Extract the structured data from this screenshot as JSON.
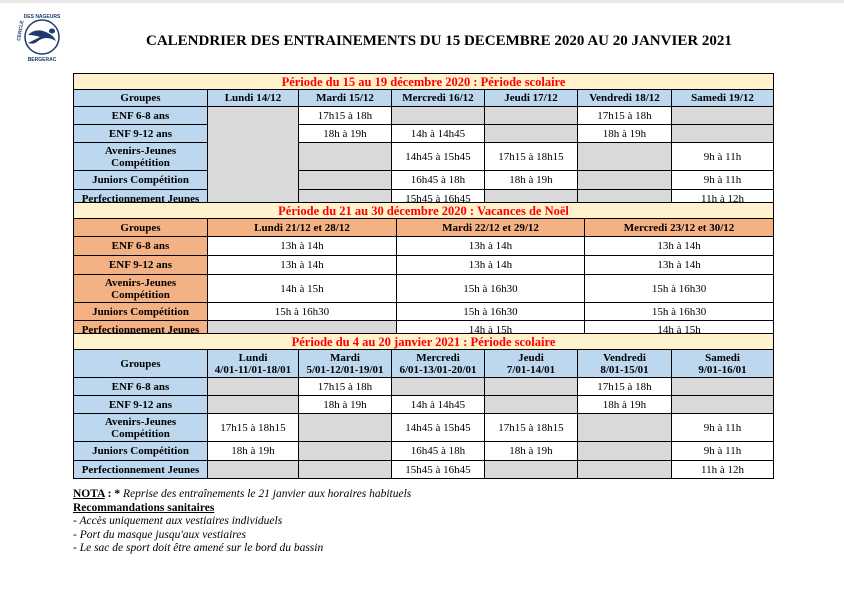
{
  "logo": {
    "text_top": "DES NAGEURS",
    "text_left": "CERCLE",
    "text_bottom": "BERGERAC",
    "color": "#1f3a6b"
  },
  "title": "CALENDRIER DES ENTRAINEMENTS DU 15 DECEMBRE 2020 AU 20 JANVIER 2021",
  "colors": {
    "period_bg": "#fff2cc",
    "period_text": "#ff0000",
    "blue_header": "#bdd7ee",
    "orange_header": "#f4b183",
    "empty_cell": "#d9d9d9"
  },
  "sections": [
    {
      "period": "Période du 15 au 19 décembre 2020 : Période scolaire",
      "theme": "blue",
      "merged_first_day_column": true,
      "headers": [
        "Groupes",
        "Lundi 14/12",
        "Mardi 15/12",
        "Mercredi 16/12",
        "Jeudi 17/12",
        "Vendredi 18/12",
        "Samedi 19/12"
      ],
      "rows": [
        {
          "group": "ENF 6-8 ans",
          "cells": [
            "",
            "17h15 à 18h",
            "",
            "",
            "17h15 à 18h",
            ""
          ]
        },
        {
          "group": "ENF 9-12 ans",
          "cells": [
            "",
            "18h à 19h",
            "14h à 14h45",
            "",
            "18h à 19h",
            ""
          ]
        },
        {
          "group": "Avenirs-Jeunes Compétition",
          "cells": [
            "",
            "",
            "14h45 à 15h45",
            "17h15 à 18h15",
            "",
            "9h à 11h"
          ]
        },
        {
          "group": "Juniors Compétition",
          "cells": [
            "",
            "",
            "16h45 à 18h",
            "18h à 19h",
            "",
            "9h à 11h"
          ]
        },
        {
          "group": "Perfectionnement Jeunes",
          "cells": [
            "",
            "",
            "15h45 à 16h45",
            "",
            "",
            "11h à 12h"
          ]
        }
      ]
    },
    {
      "period": "Période du 21 au 30 décembre 2020 : Vacances de Noël",
      "theme": "orange",
      "headers": [
        "Groupes",
        "Lundi 21/12 et 28/12",
        "Mardi 22/12 et 29/12",
        "Mercredi 23/12 et 30/12"
      ],
      "rows": [
        {
          "group": "ENF 6-8 ans",
          "cells": [
            "13h à 14h",
            "13h à 14h",
            "13h à 14h"
          ]
        },
        {
          "group": "ENF 9-12 ans",
          "cells": [
            "13h à 14h",
            "13h à 14h",
            "13h à 14h"
          ]
        },
        {
          "group": "Avenirs-Jeunes Compétition",
          "cells": [
            "14h à 15h",
            "15h à 16h30",
            "15h à 16h30"
          ]
        },
        {
          "group": "Juniors Compétition",
          "cells": [
            "15h à 16h30",
            "15h à 16h30",
            "15h à 16h30"
          ]
        },
        {
          "group": "Perfectionnement Jeunes",
          "cells": [
            "",
            "14h à 15h",
            "14h à 15h"
          ]
        }
      ]
    },
    {
      "period": "Période du 4 au 20 janvier 2021 : Période scolaire",
      "theme": "blue",
      "headers": [
        "Groupes",
        "Lundi\n4/01-11/01-18/01",
        "Mardi\n5/01-12/01-19/01",
        "Mercredi\n6/01-13/01-20/01",
        "Jeudi\n7/01-14/01",
        "Vendredi\n8/01-15/01",
        "Samedi\n9/01-16/01"
      ],
      "rows": [
        {
          "group": "ENF 6-8 ans",
          "cells": [
            "",
            "17h15 à 18h",
            "",
            "",
            "17h15 à 18h",
            ""
          ]
        },
        {
          "group": "ENF 9-12 ans",
          "cells": [
            "",
            "18h à 19h",
            "14h à 14h45",
            "",
            "18h à 19h",
            ""
          ]
        },
        {
          "group": "Avenirs-Jeunes Compétition",
          "cells": [
            "17h15 à 18h15",
            "",
            "14h45 à 15h45",
            "17h15 à 18h15",
            "",
            "9h à 11h"
          ]
        },
        {
          "group": "Juniors Compétition",
          "cells": [
            "18h à 19h",
            "",
            "16h45 à 18h",
            "18h à 19h",
            "",
            "9h à 11h"
          ]
        },
        {
          "group": "Perfectionnement Jeunes",
          "cells": [
            "",
            "",
            "15h45 à 16h45",
            "",
            "",
            "11h à 12h"
          ]
        }
      ]
    }
  ],
  "notes": {
    "nota_label": "NOTA",
    "nota_sep": " : * ",
    "nota_text": "Reprise des entraînements le 21 janvier aux horaires habituels",
    "reco_title": "Recommandations sanitaires",
    "items": [
      "- Accès uniquement aux vestiaires individuels",
      "- Port du masque jusqu'aux vestiaires",
      "- Le sac de sport doit être amené sur le bord du bassin"
    ]
  }
}
